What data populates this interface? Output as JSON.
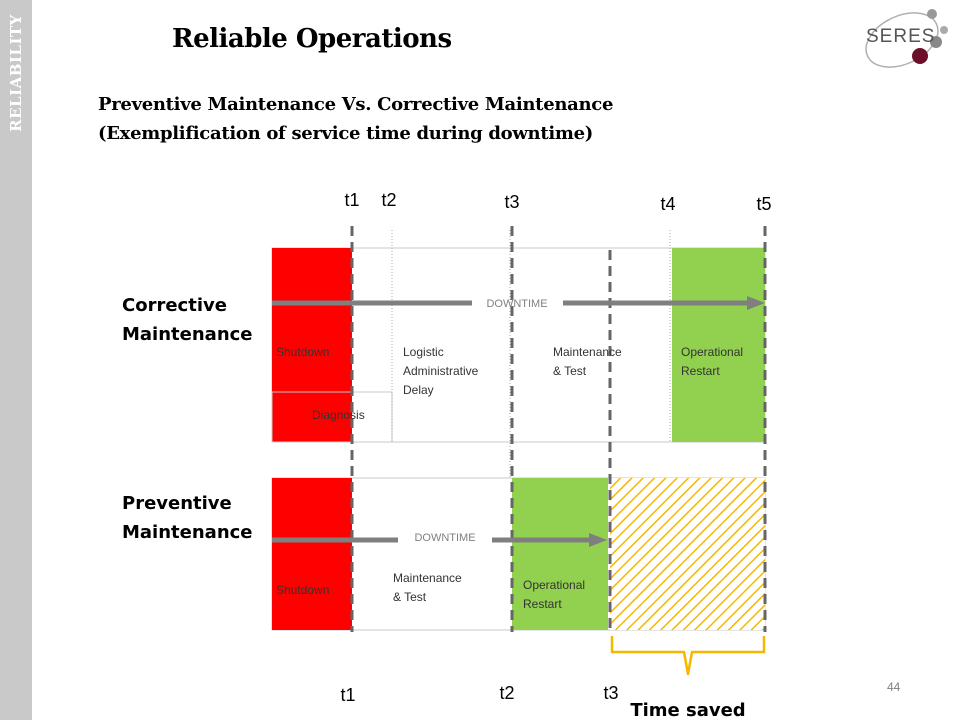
{
  "sidebar": {
    "label": "RELIABILITY"
  },
  "header": {
    "title": "Reliable Operations",
    "subtitle_line1": "Preventive Maintenance Vs. Corrective Maintenance",
    "subtitle_line2": "(Exemplification of service time during downtime)"
  },
  "logo": {
    "text": "SERES"
  },
  "top_axis": {
    "t1": "t1",
    "t2": "t2",
    "t3": "t3",
    "t4": "t4",
    "t5": "t5"
  },
  "bottom_axis": {
    "t1": "t1",
    "t2": "t2",
    "t3": "t3"
  },
  "corrective": {
    "label_line1": "Corrective",
    "label_line2": "Maintenance",
    "downtime": "DOWNTIME",
    "shutdown": "Shutdown",
    "diagnosis": "Diagnosis",
    "logistic_line1": "Logistic",
    "logistic_line2": "Administrative",
    "logistic_line3": "Delay",
    "maint_line1": "Maintenance",
    "maint_line2": "& Test",
    "restart_line1": "Operational",
    "restart_line2": "Restart"
  },
  "preventive": {
    "label_line1": "Preventive",
    "label_line2": "Maintenance",
    "downtime": "DOWNTIME",
    "shutdown": "Shutdown",
    "maint_line1": "Maintenance",
    "maint_line2": "& Test",
    "restart_line1": "Operational",
    "restart_line2": "Restart"
  },
  "time_saved": "Time saved",
  "page_number": "44",
  "colors": {
    "red": "#ff0000",
    "green": "#92d050",
    "hatch": "#f5b800",
    "arrow": "#7f7f7f",
    "dash": "#666666"
  }
}
